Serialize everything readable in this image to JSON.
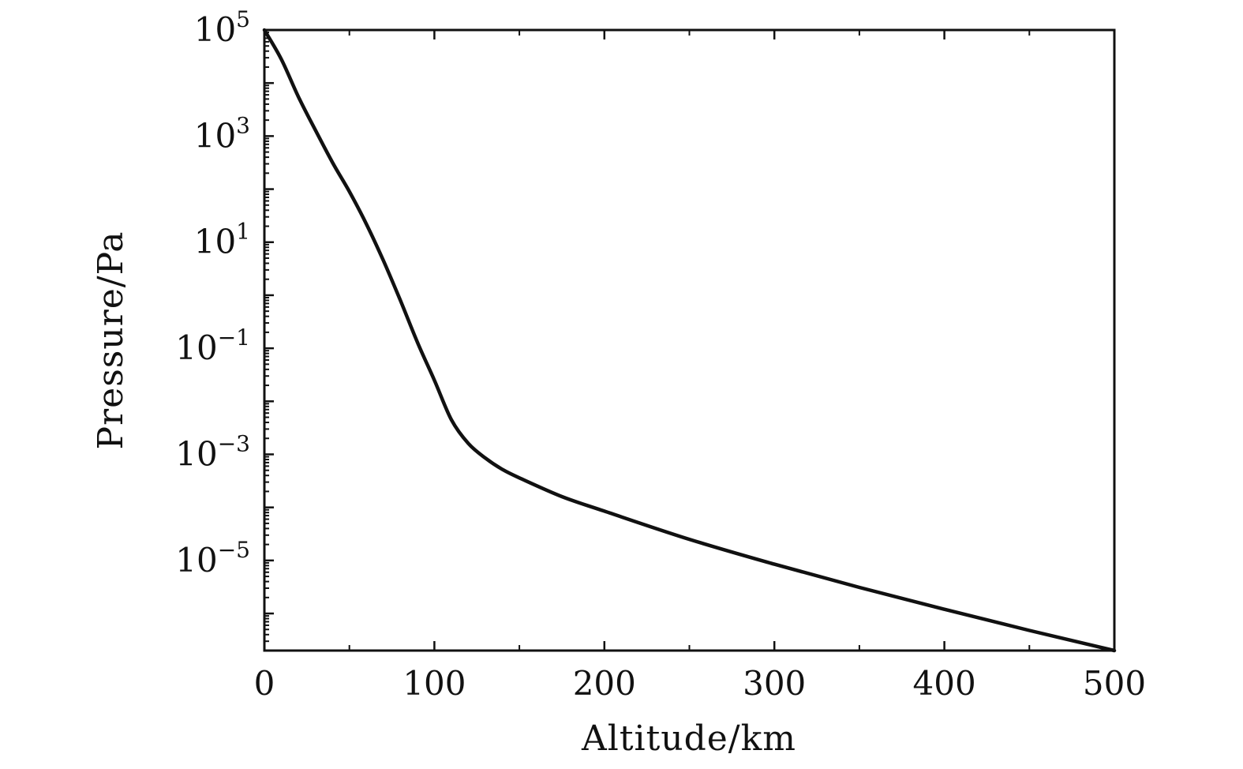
{
  "chart_data": {
    "type": "line",
    "title": "",
    "xlabel": "Altitude/km",
    "ylabel": "Pressure/Pa",
    "xlim": [
      0,
      500
    ],
    "ylim": [
      2e-07,
      100000
    ],
    "yscale": "log",
    "grid": false,
    "legend": "none",
    "line_color": "#111111",
    "x_ticks": [
      {
        "value": 0,
        "label": "0"
      },
      {
        "value": 100,
        "label": "100"
      },
      {
        "value": 200,
        "label": "200"
      },
      {
        "value": 300,
        "label": "300"
      },
      {
        "value": 400,
        "label": "400"
      },
      {
        "value": 500,
        "label": "500"
      }
    ],
    "y_ticks": [
      {
        "value": 100000,
        "base": "10",
        "exp": "5"
      },
      {
        "value": 1000,
        "base": "10",
        "exp": "3"
      },
      {
        "value": 10,
        "base": "10",
        "exp": "1"
      },
      {
        "value": 0.1,
        "base": "10",
        "exp": "−1"
      },
      {
        "value": 0.001,
        "base": "10",
        "exp": "−3"
      },
      {
        "value": 1e-05,
        "base": "10",
        "exp": "−5"
      }
    ],
    "series": [
      {
        "x": [
          0,
          10,
          20,
          30,
          40,
          50,
          60,
          70,
          80,
          90,
          100,
          110,
          120,
          130,
          140,
          150,
          175,
          200,
          250,
          300,
          350,
          400,
          450,
          500
        ],
        "y": [
          100000,
          28000,
          5500,
          1300,
          320,
          90,
          22,
          4.5,
          0.8,
          0.13,
          0.025,
          0.0045,
          0.0016,
          0.00085,
          0.00052,
          0.00036,
          0.00016,
          8.5e-05,
          2.5e-05,
          8.5e-06,
          3.1e-06,
          1.2e-06,
          4.8e-07,
          2e-07
        ]
      }
    ]
  }
}
